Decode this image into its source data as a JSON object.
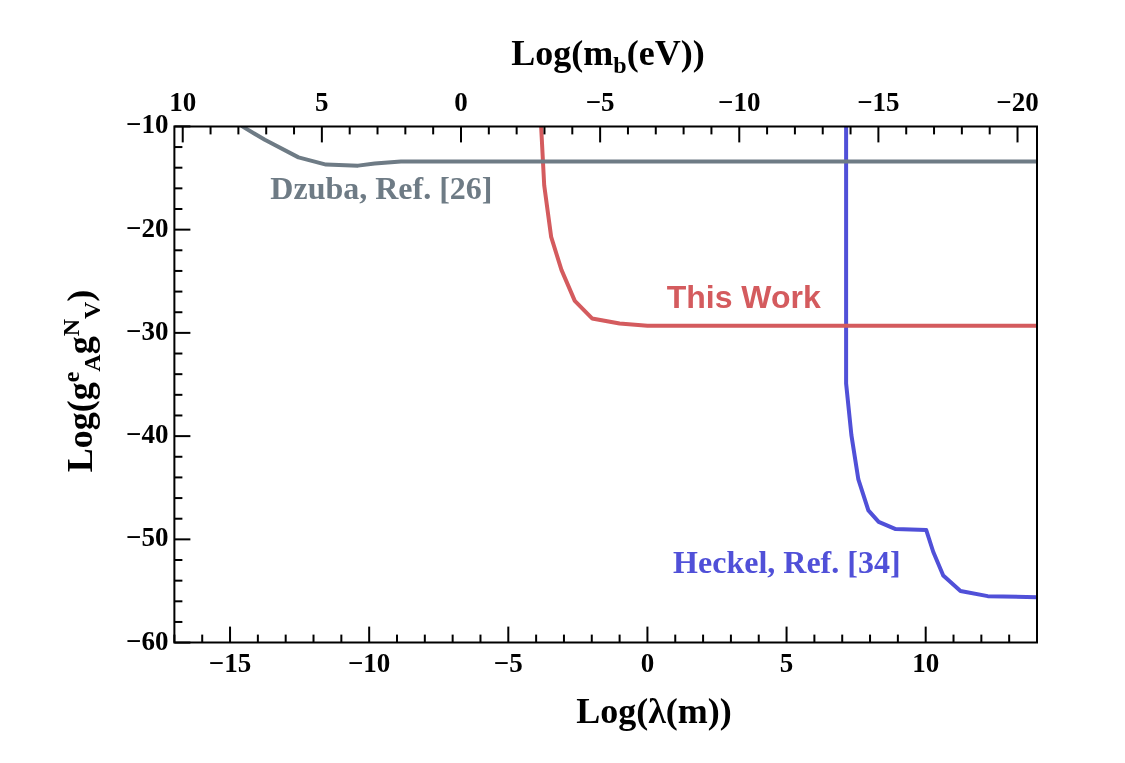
{
  "chart_data": {
    "type": "line",
    "xlabel": "Log(λ(m))",
    "ylabel": "Log(g$^{e}$$_{A}$g$^{N}$$_{V}$)",
    "x2label": "Log(m$_{b}$(eV))",
    "xlim": [
      -17,
      14
    ],
    "ylim": [
      -60,
      -10
    ],
    "x2lim": [
      10.3,
      -20.7
    ],
    "xticks": [
      {
        "value": -17,
        "label": null
      },
      -15,
      {
        "value": -16,
        "label": null
      },
      {
        "value": -14,
        "label": null
      },
      {
        "value": -13,
        "label": null
      },
      {
        "value": -12,
        "label": null
      },
      {
        "value": -11,
        "label": null
      },
      -10,
      {
        "value": -9,
        "label": null
      },
      {
        "value": -8,
        "label": null
      },
      {
        "value": -7,
        "label": null
      },
      {
        "value": -6,
        "label": null
      },
      -5,
      {
        "value": -4,
        "label": null
      },
      {
        "value": -3,
        "label": null
      },
      {
        "value": -2,
        "label": null
      },
      {
        "value": -1,
        "label": null
      },
      0,
      {
        "value": 1,
        "label": null
      },
      {
        "value": 2,
        "label": null
      },
      {
        "value": 3,
        "label": null
      },
      {
        "value": 4,
        "label": null
      },
      5,
      {
        "value": 6,
        "label": null
      },
      {
        "value": 7,
        "label": null
      },
      {
        "value": 8,
        "label": null
      },
      {
        "value": 9,
        "label": null
      },
      10,
      {
        "value": 11,
        "label": null
      },
      {
        "value": 12,
        "label": null
      },
      {
        "value": 13,
        "label": null
      }
    ],
    "x2ticks": [
      10,
      {
        "value": 9,
        "label": null
      },
      {
        "value": 8,
        "label": null
      },
      {
        "value": 7,
        "label": null
      },
      {
        "value": 6,
        "label": null
      },
      5,
      {
        "value": 4,
        "label": null
      },
      {
        "value": 3,
        "label": null
      },
      {
        "value": 2,
        "label": null
      },
      {
        "value": 1,
        "label": null
      },
      0,
      {
        "value": -1,
        "label": null
      },
      {
        "value": -2,
        "label": null
      },
      {
        "value": -3,
        "label": null
      },
      {
        "value": -4,
        "label": null
      },
      -5,
      {
        "value": -6,
        "label": null
      },
      {
        "value": -7,
        "label": null
      },
      {
        "value": -8,
        "label": null
      },
      {
        "value": -9,
        "label": null
      },
      -10,
      {
        "value": -11,
        "label": null
      },
      {
        "value": -12,
        "label": null
      },
      {
        "value": -13,
        "label": null
      },
      {
        "value": -14,
        "label": null
      },
      -15,
      {
        "value": -16,
        "label": null
      },
      {
        "value": -17,
        "label": null
      },
      {
        "value": -18,
        "label": null
      },
      {
        "value": -19,
        "label": null
      },
      -20
    ],
    "yticks": [
      -10,
      {
        "value": -12,
        "label": null
      },
      {
        "value": -14,
        "label": null
      },
      {
        "value": -16,
        "label": null
      },
      {
        "value": -18,
        "label": null
      },
      -20,
      {
        "value": -22,
        "label": null
      },
      {
        "value": -24,
        "label": null
      },
      {
        "value": -26,
        "label": null
      },
      {
        "value": -28,
        "label": null
      },
      -30,
      {
        "value": -32,
        "label": null
      },
      {
        "value": -34,
        "label": null
      },
      {
        "value": -36,
        "label": null
      },
      {
        "value": -38,
        "label": null
      },
      -40,
      {
        "value": -42,
        "label": null
      },
      {
        "value": -44,
        "label": null
      },
      {
        "value": -46,
        "label": null
      },
      {
        "value": -48,
        "label": null
      },
      -50,
      {
        "value": -52,
        "label": null
      },
      {
        "value": -54,
        "label": null
      },
      {
        "value": -56,
        "label": null
      },
      {
        "value": -58,
        "label": null
      },
      -60
    ],
    "marker": "none",
    "legend": false,
    "grid": false,
    "series": [
      {
        "name": "Dzuba, Ref. [26]",
        "color": "#6e7b85",
        "x": [
          -14.56,
          -13.75,
          -12.54,
          -11.55,
          -10.4,
          -9.8,
          -8.86,
          14
        ],
        "values": [
          -10,
          -11.3,
          -13.0,
          -13.7,
          -13.8,
          -13.6,
          -13.4,
          -13.4
        ]
      },
      {
        "name": "This Work",
        "color": "#d45b5e",
        "x": [
          -3.82,
          -3.71,
          -3.46,
          -3.09,
          -2.61,
          -1.99,
          -1.0,
          0,
          14
        ],
        "values": [
          -10,
          -15.7,
          -20.7,
          -23.9,
          -26.9,
          -28.6,
          -29.1,
          -29.3,
          -29.3
        ]
      },
      {
        "name": "Heckel, Ref. [34]",
        "color": "#5050d8",
        "x": [
          7.14,
          7.14,
          7.33,
          7.58,
          7.94,
          8.31,
          8.92,
          10.02,
          10.27,
          10.63,
          11.25,
          12.23,
          14
        ],
        "values": [
          -10,
          -34.9,
          -39.9,
          -44.2,
          -47.2,
          -48.3,
          -49.0,
          -49.1,
          -51.2,
          -53.5,
          -55.0,
          -55.5,
          -55.6
        ]
      }
    ]
  }
}
